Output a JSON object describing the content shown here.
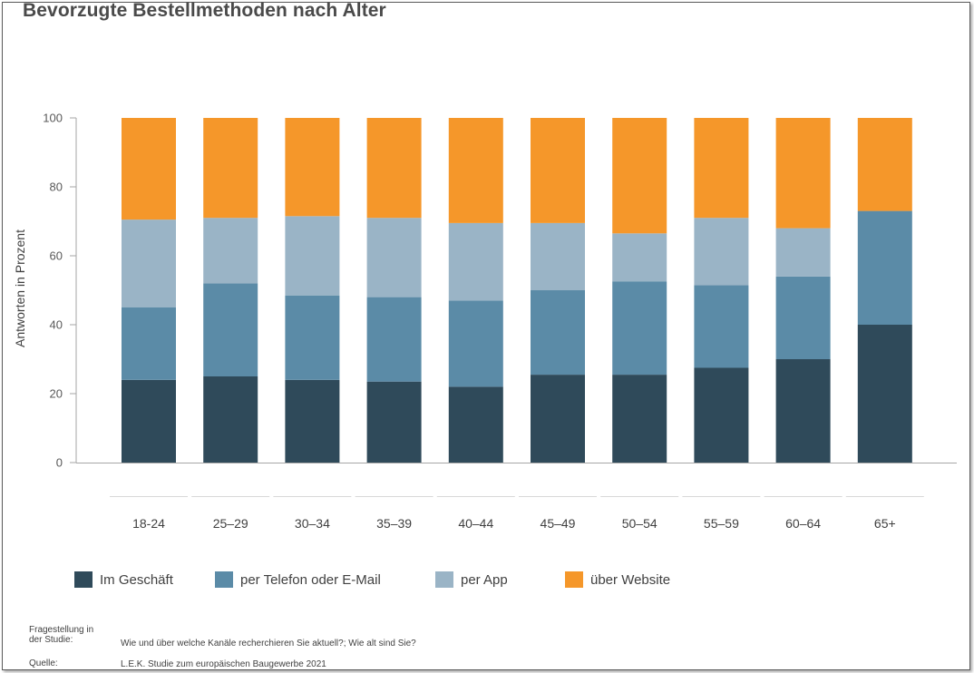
{
  "title": "Bevorzugte Bestellmethoden nach Alter",
  "chart_data": {
    "type": "bar",
    "stacked": true,
    "categories": [
      "18-24",
      "25–29",
      "30–34",
      "35–39",
      "40–44",
      "45–49",
      "50–54",
      "55–59",
      "60–64",
      "65+"
    ],
    "series": [
      {
        "name": "Im Geschäft",
        "color": "#2f4a5a",
        "values": [
          24,
          25,
          24,
          23.5,
          22,
          25.5,
          25.5,
          27.5,
          30,
          40
        ]
      },
      {
        "name": "per Telefon oder E-Mail",
        "color": "#5b8ba7",
        "values": [
          21,
          27,
          24.5,
          24.5,
          25,
          24.5,
          27,
          24,
          24,
          33
        ]
      },
      {
        "name": "per App",
        "color": "#9ab4c6",
        "values": [
          25.5,
          19,
          23,
          23,
          22.5,
          19.5,
          14,
          19.5,
          14,
          0
        ]
      },
      {
        "name": "über Website",
        "color": "#f5972a",
        "values": [
          29.5,
          29,
          28.5,
          29,
          30.5,
          30.5,
          33.5,
          29,
          32,
          27
        ]
      }
    ],
    "ylabel": "Antworten in Prozent",
    "ylim": [
      0,
      100
    ],
    "yticks": [
      "0",
      "20",
      "40",
      "60",
      "80",
      "100"
    ],
    "grid": false,
    "legend_position": "bottom"
  },
  "footer": {
    "question_label_line1": "Fragestellung in",
    "question_label_line2": "der Studie:",
    "question_text": "Wie und über welche Kanäle recherchieren Sie aktuell?; Wie alt sind Sie?",
    "source_label": "Quelle:",
    "source_text": "L.E.K. Studie zum europäischen Baugewerbe 2021"
  }
}
